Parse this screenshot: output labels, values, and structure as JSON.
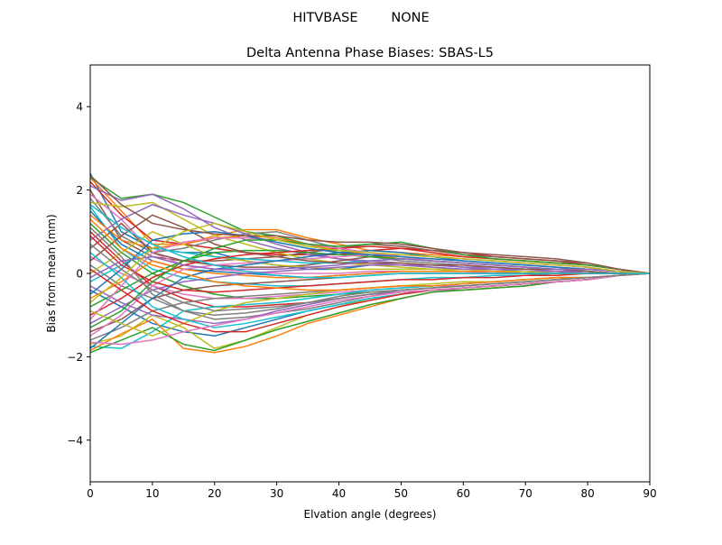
{
  "chart_data": {
    "type": "line",
    "suptitle": "HITVBASE        NONE",
    "title": "Delta Antenna Phase Biases: SBAS-L5",
    "xlabel": "Elvation angle (degrees)",
    "ylabel": "Bias from mean (mm)",
    "xlim": [
      0,
      90
    ],
    "ylim": [
      -5,
      5
    ],
    "x_ticks": [
      0,
      10,
      20,
      30,
      40,
      50,
      60,
      70,
      80,
      90
    ],
    "y_ticks": [
      -4,
      -2,
      0,
      2,
      4
    ],
    "y_tick_labels": [
      "−4",
      "−2",
      "0",
      "2",
      "4"
    ],
    "grid": false,
    "legend": "none",
    "x": [
      0,
      5,
      10,
      15,
      20,
      25,
      30,
      35,
      40,
      45,
      50,
      55,
      60,
      65,
      70,
      75,
      80,
      85,
      90
    ],
    "series": [
      {
        "values": [
          2.4,
          1.0,
          0.6,
          0.5,
          0.5,
          0.3,
          0.2,
          0.1,
          0.1,
          0.2,
          0.2,
          0.15,
          0.1,
          0.1,
          0.05,
          0.05,
          0.0,
          0.0,
          0.0
        ]
      },
      {
        "values": [
          2.3,
          1.5,
          0.7,
          0.7,
          0.9,
          1.05,
          1.05,
          0.85,
          0.7,
          0.55,
          0.5,
          0.45,
          0.4,
          0.35,
          0.3,
          0.25,
          0.2,
          0.1,
          0.0
        ]
      },
      {
        "values": [
          2.3,
          1.8,
          1.9,
          1.7,
          1.35,
          1.0,
          0.9,
          0.7,
          0.5,
          0.4,
          0.35,
          0.3,
          0.25,
          0.2,
          0.15,
          0.1,
          0.1,
          0.05,
          0.0
        ]
      },
      {
        "values": [
          2.2,
          1.4,
          0.8,
          0.7,
          0.6,
          0.5,
          0.45,
          0.45,
          0.45,
          0.55,
          0.6,
          0.55,
          0.5,
          0.4,
          0.35,
          0.3,
          0.2,
          0.1,
          0.0
        ]
      },
      {
        "values": [
          2.1,
          1.75,
          1.9,
          1.55,
          1.1,
          0.8,
          0.6,
          0.45,
          0.35,
          0.3,
          0.25,
          0.2,
          0.15,
          0.1,
          0.1,
          0.05,
          0.05,
          0.0,
          0.0
        ]
      },
      {
        "values": [
          2.0,
          0.8,
          0.4,
          0.3,
          0.3,
          0.35,
          0.4,
          0.5,
          0.6,
          0.7,
          0.65,
          0.55,
          0.45,
          0.4,
          0.35,
          0.3,
          0.25,
          0.1,
          0.0
        ]
      },
      {
        "values": [
          1.9,
          1.3,
          0.5,
          0.2,
          0.1,
          0.05,
          0.0,
          0.0,
          0.0,
          0.05,
          0.05,
          0.05,
          0.05,
          0.0,
          0.0,
          0.0,
          0.0,
          0.0,
          0.0
        ]
      },
      {
        "values": [
          1.8,
          0.9,
          0.5,
          0.6,
          0.8,
          0.95,
          1.0,
          0.8,
          0.6,
          0.4,
          0.3,
          0.25,
          0.2,
          0.15,
          0.1,
          0.1,
          0.05,
          0.0,
          0.0
        ]
      },
      {
        "values": [
          1.7,
          1.6,
          1.7,
          1.3,
          0.9,
          0.7,
          0.5,
          0.35,
          0.25,
          0.2,
          0.15,
          0.1,
          0.1,
          0.05,
          0.05,
          0.0,
          0.0,
          0.0,
          0.0
        ]
      },
      {
        "values": [
          1.6,
          0.6,
          0.1,
          -0.1,
          -0.2,
          -0.25,
          -0.3,
          -0.3,
          -0.25,
          -0.2,
          -0.15,
          -0.1,
          -0.1,
          -0.05,
          -0.05,
          0.0,
          0.0,
          0.0,
          0.0
        ]
      },
      {
        "values": [
          1.5,
          0.7,
          0.3,
          0.1,
          0.05,
          0.0,
          -0.05,
          -0.1,
          -0.05,
          0.0,
          0.05,
          0.05,
          0.05,
          0.05,
          0.0,
          0.0,
          0.0,
          0.0,
          0.0
        ]
      },
      {
        "values": [
          1.4,
          0.8,
          0.6,
          0.7,
          0.85,
          0.9,
          0.85,
          0.7,
          0.55,
          0.45,
          0.35,
          0.3,
          0.25,
          0.2,
          0.15,
          0.1,
          0.1,
          0.05,
          0.0
        ]
      },
      {
        "values": [
          1.2,
          0.5,
          0.0,
          -0.3,
          -0.5,
          -0.6,
          -0.6,
          -0.55,
          -0.5,
          -0.45,
          -0.4,
          -0.35,
          -0.3,
          -0.25,
          -0.2,
          -0.15,
          -0.1,
          -0.05,
          0.0
        ]
      },
      {
        "values": [
          1.0,
          0.3,
          -0.3,
          -0.6,
          -0.8,
          -0.8,
          -0.75,
          -0.7,
          -0.6,
          -0.5,
          -0.45,
          -0.4,
          -0.35,
          -0.3,
          -0.25,
          -0.2,
          -0.15,
          -0.05,
          0.0
        ]
      },
      {
        "values": [
          0.8,
          1.3,
          1.65,
          1.4,
          1.2,
          0.95,
          0.7,
          0.5,
          0.35,
          0.25,
          0.2,
          0.15,
          0.1,
          0.1,
          0.05,
          0.05,
          0.0,
          0.0,
          0.0
        ]
      },
      {
        "values": [
          0.6,
          1.2,
          0.5,
          0.3,
          0.2,
          0.15,
          0.15,
          0.2,
          0.3,
          0.4,
          0.45,
          0.4,
          0.35,
          0.3,
          0.25,
          0.2,
          0.15,
          0.05,
          0.0
        ]
      },
      {
        "values": [
          0.4,
          0.0,
          -0.3,
          -0.5,
          -0.6,
          -0.6,
          -0.55,
          -0.5,
          -0.45,
          -0.4,
          -0.35,
          -0.3,
          -0.3,
          -0.25,
          -0.2,
          -0.15,
          -0.1,
          -0.05,
          0.0
        ]
      },
      {
        "values": [
          0.2,
          -0.3,
          -0.6,
          -0.9,
          -1.1,
          -1.05,
          -0.95,
          -0.85,
          -0.7,
          -0.55,
          -0.45,
          -0.4,
          -0.4,
          -0.35,
          -0.3,
          -0.2,
          -0.15,
          -0.05,
          0.0
        ]
      },
      {
        "values": [
          0.0,
          0.5,
          1.0,
          0.7,
          0.4,
          0.3,
          0.2,
          0.15,
          0.1,
          0.1,
          0.1,
          0.1,
          0.05,
          0.05,
          0.05,
          0.0,
          0.0,
          0.0,
          0.0
        ]
      },
      {
        "values": [
          -0.2,
          0.2,
          0.6,
          0.5,
          0.4,
          0.35,
          0.3,
          0.25,
          0.25,
          0.3,
          0.35,
          0.3,
          0.25,
          0.2,
          0.15,
          0.1,
          0.1,
          0.05,
          0.0
        ]
      },
      {
        "values": [
          -0.4,
          -0.8,
          -1.2,
          -1.4,
          -1.5,
          -1.3,
          -1.1,
          -0.9,
          -0.75,
          -0.6,
          -0.5,
          -0.4,
          -0.35,
          -0.3,
          -0.25,
          -0.2,
          -0.15,
          -0.05,
          0.0
        ]
      },
      {
        "values": [
          -0.6,
          -0.2,
          0.3,
          0.1,
          0.0,
          -0.05,
          -0.1,
          -0.1,
          -0.05,
          0.0,
          0.05,
          0.05,
          0.05,
          0.05,
          0.0,
          0.0,
          0.0,
          0.0,
          0.0
        ]
      },
      {
        "values": [
          -0.8,
          -0.4,
          0.0,
          0.3,
          0.5,
          0.55,
          0.55,
          0.5,
          0.45,
          0.4,
          0.35,
          0.3,
          0.25,
          0.2,
          0.15,
          0.1,
          0.1,
          0.05,
          0.0
        ]
      },
      {
        "values": [
          -1.0,
          -0.6,
          -0.1,
          0.2,
          0.35,
          0.45,
          0.5,
          0.55,
          0.6,
          0.65,
          0.6,
          0.5,
          0.4,
          0.35,
          0.3,
          0.25,
          0.2,
          0.1,
          0.0
        ]
      },
      {
        "values": [
          -1.2,
          -0.8,
          -0.4,
          -0.2,
          -0.1,
          0.0,
          0.05,
          0.1,
          0.15,
          0.2,
          0.2,
          0.2,
          0.15,
          0.15,
          0.1,
          0.1,
          0.05,
          0.0,
          0.0
        ]
      },
      {
        "values": [
          -1.4,
          -1.1,
          -0.6,
          -0.4,
          -0.3,
          -0.25,
          -0.2,
          -0.15,
          -0.1,
          -0.05,
          0.0,
          0.0,
          0.0,
          0.0,
          0.0,
          0.0,
          0.0,
          0.0,
          0.0
        ]
      },
      {
        "values": [
          -1.5,
          -1.0,
          -0.3,
          0.1,
          0.2,
          0.25,
          0.3,
          0.35,
          0.4,
          0.45,
          0.45,
          0.4,
          0.35,
          0.3,
          0.25,
          0.2,
          0.15,
          0.05,
          0.0
        ]
      },
      {
        "values": [
          -1.6,
          -1.3,
          -0.9,
          -0.7,
          -0.6,
          -0.55,
          -0.5,
          -0.45,
          -0.4,
          -0.35,
          -0.3,
          -0.3,
          -0.25,
          -0.2,
          -0.15,
          -0.1,
          -0.1,
          -0.05,
          0.0
        ]
      },
      {
        "values": [
          -1.7,
          -1.5,
          -1.0,
          -1.3,
          -1.8,
          -1.6,
          -1.3,
          -1.0,
          -0.8,
          -0.6,
          -0.5,
          -0.4,
          -0.35,
          -0.3,
          -0.25,
          -0.2,
          -0.15,
          -0.05,
          0.0
        ]
      },
      {
        "values": [
          -1.75,
          -1.8,
          -1.4,
          -0.9,
          -0.8,
          -0.75,
          -0.7,
          -0.6,
          -0.5,
          -0.4,
          -0.35,
          -0.3,
          -0.25,
          -0.2,
          -0.15,
          -0.1,
          -0.1,
          -0.05,
          0.0
        ]
      },
      {
        "values": [
          -1.8,
          -1.2,
          -0.6,
          -0.1,
          0.1,
          0.2,
          0.3,
          0.4,
          0.5,
          0.55,
          0.5,
          0.4,
          0.3,
          0.25,
          0.2,
          0.15,
          0.1,
          0.05,
          0.0
        ]
      },
      {
        "values": [
          -1.85,
          -1.45,
          -1.1,
          -1.8,
          -1.9,
          -1.75,
          -1.5,
          -1.2,
          -1.0,
          -0.8,
          -0.6,
          -0.45,
          -0.4,
          -0.35,
          -0.3,
          -0.2,
          -0.15,
          -0.05,
          0.0
        ]
      },
      {
        "values": [
          -1.9,
          -1.6,
          -1.3,
          -1.7,
          -1.85,
          -1.6,
          -1.35,
          -1.15,
          -0.95,
          -0.75,
          -0.6,
          -0.45,
          -0.4,
          -0.35,
          -0.3,
          -0.2,
          -0.15,
          -0.05,
          0.0
        ]
      },
      {
        "values": [
          0.9,
          0.2,
          -0.2,
          -0.4,
          -0.45,
          -0.4,
          -0.35,
          -0.3,
          -0.25,
          -0.2,
          -0.15,
          -0.15,
          -0.1,
          -0.1,
          -0.05,
          -0.05,
          0.0,
          0.0,
          0.0
        ]
      },
      {
        "values": [
          -0.3,
          -0.7,
          -1.0,
          -1.1,
          -1.2,
          -1.1,
          -0.9,
          -0.75,
          -0.6,
          -0.5,
          -0.45,
          -0.4,
          -0.35,
          -0.3,
          -0.25,
          -0.2,
          -0.15,
          -0.05,
          0.0
        ]
      },
      {
        "values": [
          0.3,
          0.9,
          1.4,
          1.1,
          0.7,
          0.5,
          0.4,
          0.3,
          0.25,
          0.25,
          0.25,
          0.2,
          0.2,
          0.15,
          0.1,
          0.1,
          0.05,
          0.0,
          0.0
        ]
      },
      {
        "values": [
          -1.1,
          -0.3,
          0.5,
          0.75,
          0.85,
          0.85,
          0.8,
          0.7,
          0.6,
          0.5,
          0.4,
          0.3,
          0.25,
          0.2,
          0.15,
          0.1,
          0.1,
          0.05,
          0.0
        ]
      },
      {
        "values": [
          1.1,
          0.4,
          -0.5,
          -0.9,
          -1.0,
          -0.95,
          -0.85,
          -0.7,
          -0.55,
          -0.45,
          -0.4,
          -0.35,
          -0.3,
          -0.25,
          -0.2,
          -0.15,
          -0.1,
          -0.05,
          0.0
        ]
      },
      {
        "values": [
          -0.9,
          -1.2,
          -1.5,
          -1.2,
          -0.9,
          -0.7,
          -0.6,
          -0.5,
          -0.4,
          -0.35,
          -0.3,
          -0.25,
          -0.2,
          -0.2,
          -0.15,
          -0.1,
          -0.1,
          -0.05,
          0.0
        ]
      },
      {
        "values": [
          0.5,
          -0.1,
          -0.8,
          -1.1,
          -1.3,
          -1.2,
          -1.05,
          -0.9,
          -0.75,
          -0.6,
          -0.5,
          -0.4,
          -0.35,
          -0.3,
          -0.25,
          -0.2,
          -0.15,
          -0.05,
          0.0
        ]
      },
      {
        "values": [
          -0.5,
          0.1,
          0.8,
          0.95,
          1.0,
          0.9,
          0.75,
          0.6,
          0.5,
          0.45,
          0.4,
          0.35,
          0.3,
          0.25,
          0.2,
          0.15,
          0.1,
          0.05,
          0.0
        ]
      },
      {
        "values": [
          1.3,
          0.6,
          0.2,
          0.0,
          -0.2,
          -0.3,
          -0.35,
          -0.4,
          -0.4,
          -0.35,
          -0.3,
          -0.3,
          -0.25,
          -0.2,
          -0.15,
          -0.1,
          -0.1,
          -0.05,
          0.0
        ]
      },
      {
        "values": [
          -1.3,
          -0.9,
          -0.2,
          0.3,
          0.6,
          0.8,
          0.8,
          0.7,
          0.65,
          0.7,
          0.75,
          0.6,
          0.45,
          0.35,
          0.3,
          0.25,
          0.2,
          0.1,
          0.0
        ]
      },
      {
        "values": [
          0.1,
          -0.4,
          -0.9,
          -1.2,
          -1.4,
          -1.4,
          -1.2,
          -1.0,
          -0.8,
          -0.65,
          -0.5,
          -0.4,
          -0.35,
          -0.3,
          -0.25,
          -0.2,
          -0.15,
          -0.05,
          0.0
        ]
      },
      {
        "values": [
          -0.1,
          0.3,
          0.4,
          0.2,
          0.1,
          0.1,
          0.1,
          0.15,
          0.2,
          0.3,
          0.35,
          0.3,
          0.25,
          0.2,
          0.15,
          0.1,
          0.1,
          0.05,
          0.0
        ]
      },
      {
        "values": [
          2.35,
          1.65,
          1.2,
          1.05,
          0.95,
          0.9,
          0.9,
          0.8,
          0.75,
          0.75,
          0.7,
          0.6,
          0.5,
          0.45,
          0.4,
          0.35,
          0.25,
          0.1,
          0.0
        ]
      },
      {
        "values": [
          -1.65,
          -1.7,
          -1.6,
          -1.4,
          -1.25,
          -1.1,
          -0.95,
          -0.8,
          -0.65,
          -0.55,
          -0.45,
          -0.4,
          -0.35,
          -0.3,
          -0.25,
          -0.2,
          -0.15,
          -0.05,
          0.0
        ]
      },
      {
        "values": [
          0.7,
          0.1,
          -0.4,
          -0.7,
          -0.9,
          -0.85,
          -0.8,
          -0.7,
          -0.6,
          -0.5,
          -0.4,
          -0.35,
          -0.3,
          -0.25,
          -0.2,
          -0.15,
          -0.1,
          -0.05,
          0.0
        ]
      },
      {
        "values": [
          -0.7,
          -0.1,
          0.6,
          1.0,
          1.2,
          1.0,
          0.8,
          0.65,
          0.55,
          0.5,
          0.45,
          0.4,
          0.35,
          0.3,
          0.25,
          0.2,
          0.15,
          0.05,
          0.0
        ]
      },
      {
        "values": [
          1.65,
          1.1,
          0.7,
          0.4,
          0.2,
          0.05,
          -0.05,
          -0.1,
          -0.1,
          -0.05,
          0.0,
          0.0,
          0.0,
          0.0,
          0.0,
          0.0,
          0.0,
          0.0,
          0.0
        ]
      }
    ]
  },
  "colors": [
    "#1f77b4",
    "#ff7f0e",
    "#2ca02c",
    "#d62728",
    "#9467bd",
    "#8c564b",
    "#e377c2",
    "#7f7f7f",
    "#bcbd22",
    "#17becf"
  ]
}
